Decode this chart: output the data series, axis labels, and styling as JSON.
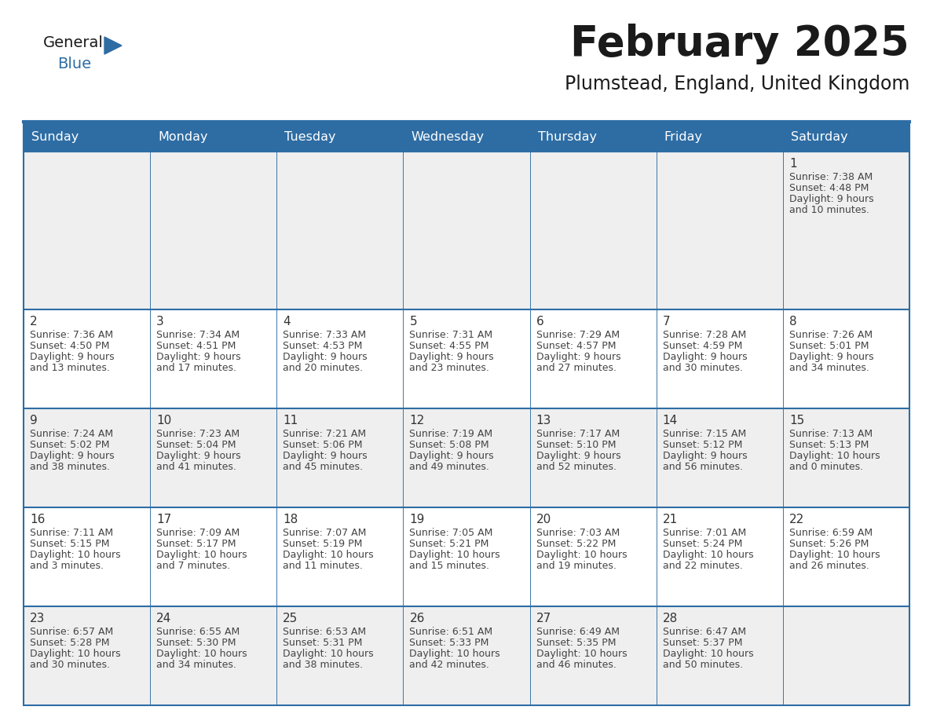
{
  "title": "February 2025",
  "subtitle": "Plumstead, England, United Kingdom",
  "days_of_week": [
    "Sunday",
    "Monday",
    "Tuesday",
    "Wednesday",
    "Thursday",
    "Friday",
    "Saturday"
  ],
  "header_bg": "#2E6DA4",
  "header_text": "#FFFFFF",
  "cell_bg_odd": "#EFEFEF",
  "cell_bg_even": "#FFFFFF",
  "border_color": "#2E6DA4",
  "text_color": "#444444",
  "day_num_color": "#333333",
  "logo_triangle_color": "#2E6DA4",
  "calendar_data": [
    [
      null,
      null,
      null,
      null,
      null,
      null,
      {
        "day": 1,
        "sunrise": "7:38 AM",
        "sunset": "4:48 PM",
        "daylight_line1": "9 hours",
        "daylight_line2": "and 10 minutes."
      }
    ],
    [
      {
        "day": 2,
        "sunrise": "7:36 AM",
        "sunset": "4:50 PM",
        "daylight_line1": "9 hours",
        "daylight_line2": "and 13 minutes."
      },
      {
        "day": 3,
        "sunrise": "7:34 AM",
        "sunset": "4:51 PM",
        "daylight_line1": "9 hours",
        "daylight_line2": "and 17 minutes."
      },
      {
        "day": 4,
        "sunrise": "7:33 AM",
        "sunset": "4:53 PM",
        "daylight_line1": "9 hours",
        "daylight_line2": "and 20 minutes."
      },
      {
        "day": 5,
        "sunrise": "7:31 AM",
        "sunset": "4:55 PM",
        "daylight_line1": "9 hours",
        "daylight_line2": "and 23 minutes."
      },
      {
        "day": 6,
        "sunrise": "7:29 AM",
        "sunset": "4:57 PM",
        "daylight_line1": "9 hours",
        "daylight_line2": "and 27 minutes."
      },
      {
        "day": 7,
        "sunrise": "7:28 AM",
        "sunset": "4:59 PM",
        "daylight_line1": "9 hours",
        "daylight_line2": "and 30 minutes."
      },
      {
        "day": 8,
        "sunrise": "7:26 AM",
        "sunset": "5:01 PM",
        "daylight_line1": "9 hours",
        "daylight_line2": "and 34 minutes."
      }
    ],
    [
      {
        "day": 9,
        "sunrise": "7:24 AM",
        "sunset": "5:02 PM",
        "daylight_line1": "9 hours",
        "daylight_line2": "and 38 minutes."
      },
      {
        "day": 10,
        "sunrise": "7:23 AM",
        "sunset": "5:04 PM",
        "daylight_line1": "9 hours",
        "daylight_line2": "and 41 minutes."
      },
      {
        "day": 11,
        "sunrise": "7:21 AM",
        "sunset": "5:06 PM",
        "daylight_line1": "9 hours",
        "daylight_line2": "and 45 minutes."
      },
      {
        "day": 12,
        "sunrise": "7:19 AM",
        "sunset": "5:08 PM",
        "daylight_line1": "9 hours",
        "daylight_line2": "and 49 minutes."
      },
      {
        "day": 13,
        "sunrise": "7:17 AM",
        "sunset": "5:10 PM",
        "daylight_line1": "9 hours",
        "daylight_line2": "and 52 minutes."
      },
      {
        "day": 14,
        "sunrise": "7:15 AM",
        "sunset": "5:12 PM",
        "daylight_line1": "9 hours",
        "daylight_line2": "and 56 minutes."
      },
      {
        "day": 15,
        "sunrise": "7:13 AM",
        "sunset": "5:13 PM",
        "daylight_line1": "10 hours",
        "daylight_line2": "and 0 minutes."
      }
    ],
    [
      {
        "day": 16,
        "sunrise": "7:11 AM",
        "sunset": "5:15 PM",
        "daylight_line1": "10 hours",
        "daylight_line2": "and 3 minutes."
      },
      {
        "day": 17,
        "sunrise": "7:09 AM",
        "sunset": "5:17 PM",
        "daylight_line1": "10 hours",
        "daylight_line2": "and 7 minutes."
      },
      {
        "day": 18,
        "sunrise": "7:07 AM",
        "sunset": "5:19 PM",
        "daylight_line1": "10 hours",
        "daylight_line2": "and 11 minutes."
      },
      {
        "day": 19,
        "sunrise": "7:05 AM",
        "sunset": "5:21 PM",
        "daylight_line1": "10 hours",
        "daylight_line2": "and 15 minutes."
      },
      {
        "day": 20,
        "sunrise": "7:03 AM",
        "sunset": "5:22 PM",
        "daylight_line1": "10 hours",
        "daylight_line2": "and 19 minutes."
      },
      {
        "day": 21,
        "sunrise": "7:01 AM",
        "sunset": "5:24 PM",
        "daylight_line1": "10 hours",
        "daylight_line2": "and 22 minutes."
      },
      {
        "day": 22,
        "sunrise": "6:59 AM",
        "sunset": "5:26 PM",
        "daylight_line1": "10 hours",
        "daylight_line2": "and 26 minutes."
      }
    ],
    [
      {
        "day": 23,
        "sunrise": "6:57 AM",
        "sunset": "5:28 PM",
        "daylight_line1": "10 hours",
        "daylight_line2": "and 30 minutes."
      },
      {
        "day": 24,
        "sunrise": "6:55 AM",
        "sunset": "5:30 PM",
        "daylight_line1": "10 hours",
        "daylight_line2": "and 34 minutes."
      },
      {
        "day": 25,
        "sunrise": "6:53 AM",
        "sunset": "5:31 PM",
        "daylight_line1": "10 hours",
        "daylight_line2": "and 38 minutes."
      },
      {
        "day": 26,
        "sunrise": "6:51 AM",
        "sunset": "5:33 PM",
        "daylight_line1": "10 hours",
        "daylight_line2": "and 42 minutes."
      },
      {
        "day": 27,
        "sunrise": "6:49 AM",
        "sunset": "5:35 PM",
        "daylight_line1": "10 hours",
        "daylight_line2": "and 46 minutes."
      },
      {
        "day": 28,
        "sunrise": "6:47 AM",
        "sunset": "5:37 PM",
        "daylight_line1": "10 hours",
        "daylight_line2": "and 50 minutes."
      },
      null
    ]
  ]
}
